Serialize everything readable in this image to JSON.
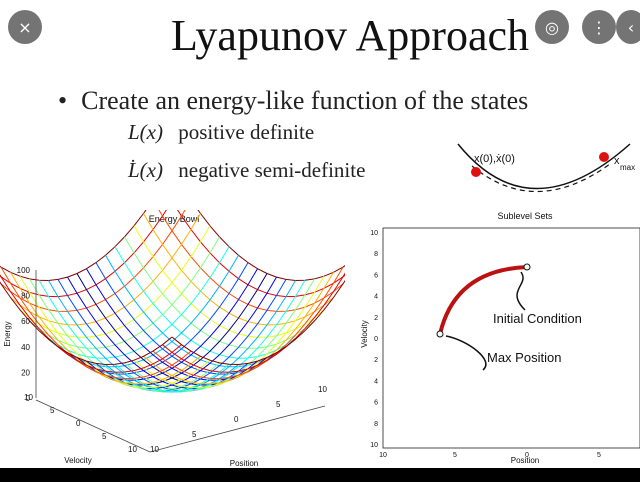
{
  "viewer": {
    "close_icon": "×",
    "lens_icon": "◎",
    "more_icon": "⋮",
    "share_icon": "‹"
  },
  "slide": {
    "title": "Lyapunov Approach",
    "bullet": "Create an energy-like function of the states",
    "sub1_math": "L(x)",
    "sub1_text": "positive definite",
    "sub2_math": "L̇(x)",
    "sub2_text": "negative semi-definite",
    "diagram": {
      "left_label": "x(0),ẋ(0)",
      "right_label": "x",
      "right_sub": "max"
    }
  },
  "chart_data": [
    {
      "type": "surface",
      "title": "Energy Bowl",
      "xlabel": "Velocity",
      "ylabel": "Position",
      "zlabel": "Energy",
      "z_ticks": [
        "100",
        "80",
        "60",
        "40",
        "20",
        "0"
      ],
      "x_ticks": [
        "10",
        "5",
        "0",
        "5",
        "10"
      ],
      "y_ticks": [
        "10",
        "5",
        "0",
        "5",
        "10"
      ]
    },
    {
      "type": "contour",
      "title": "Sublevel Sets",
      "xlabel": "Position",
      "ylabel": "Velocity",
      "x_ticks": [
        "10",
        "5",
        "0",
        "5"
      ],
      "y_ticks": [
        "10",
        "8",
        "6",
        "4",
        "2",
        "0",
        "2",
        "4",
        "6",
        "8",
        "10"
      ],
      "annotations": [
        "Initial Condition",
        "Max Position"
      ]
    }
  ]
}
